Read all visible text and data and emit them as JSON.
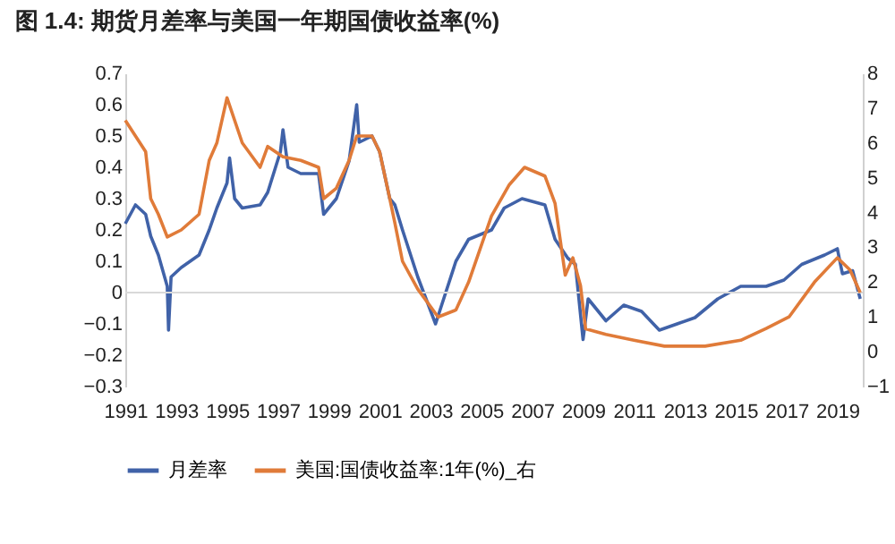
{
  "chart_data": {
    "type": "line",
    "title": "图 1.4: 期货月差率与美国一年期国债收益率(%)",
    "legend": "bottom",
    "xlim": [
      1991,
      2020
    ],
    "xticks": [
      1991,
      1993,
      1995,
      1997,
      1999,
      2001,
      2003,
      2005,
      2007,
      2009,
      2011,
      2013,
      2015,
      2017,
      2019
    ],
    "ylim": [
      -0.3,
      0.7
    ],
    "yticks": [
      -0.3,
      -0.2,
      -0.1,
      0,
      0.1,
      0.2,
      0.3,
      0.4,
      0.5,
      0.6,
      0.7
    ],
    "y2lim": [
      -1,
      8
    ],
    "y2ticks": [
      -1,
      0,
      1,
      2,
      3,
      4,
      5,
      6,
      7,
      8
    ],
    "ref_lines": [
      {
        "axis": "y",
        "value": 0,
        "color": "#d9d9d9"
      }
    ],
    "series": [
      {
        "name": "月差率",
        "color": "#4062a8",
        "x": [
          1991.0,
          1991.4,
          1991.8,
          1992.0,
          1992.3,
          1992.65,
          1992.7,
          1992.8,
          1993.2,
          1993.9,
          1994.3,
          1994.6,
          1995.0,
          1995.1,
          1995.3,
          1995.6,
          1996.3,
          1996.6,
          1997.1,
          1997.2,
          1997.4,
          1997.9,
          1998.6,
          1998.8,
          1999.3,
          1999.8,
          2000.1,
          2000.2,
          2000.7,
          2001.0,
          2001.4,
          2001.6,
          2001.9,
          2002.5,
          2003.2,
          2003.6,
          2004.0,
          2004.5,
          2005.4,
          2005.9,
          2006.6,
          2007.5,
          2007.9,
          2008.4,
          2008.7,
          2009.0,
          2009.2,
          2009.9,
          2010.6,
          2011.3,
          2012.0,
          2012.7,
          2013.4,
          2014.3,
          2015.2,
          2016.2,
          2016.9,
          2017.6,
          2018.5,
          2019.0,
          2019.2,
          2019.6,
          2019.9
        ],
        "values": [
          0.22,
          0.28,
          0.25,
          0.18,
          0.12,
          0.02,
          -0.12,
          0.05,
          0.08,
          0.12,
          0.2,
          0.27,
          0.35,
          0.43,
          0.3,
          0.27,
          0.28,
          0.32,
          0.45,
          0.52,
          0.4,
          0.38,
          0.38,
          0.25,
          0.3,
          0.42,
          0.6,
          0.48,
          0.5,
          0.45,
          0.3,
          0.28,
          0.2,
          0.05,
          -0.1,
          0.0,
          0.1,
          0.17,
          0.2,
          0.27,
          0.3,
          0.28,
          0.17,
          0.11,
          0.09,
          -0.15,
          -0.02,
          -0.09,
          -0.04,
          -0.06,
          -0.12,
          -0.1,
          -0.08,
          -0.02,
          0.02,
          0.02,
          0.04,
          0.09,
          0.12,
          0.14,
          0.06,
          0.07,
          -0.02
        ]
      },
      {
        "name": "美国:国债收益率:1年(%)_右",
        "color": "#e07b39",
        "axis": "y2",
        "x": [
          1991.0,
          1991.4,
          1991.8,
          1992.0,
          1992.3,
          1992.65,
          1993.2,
          1993.9,
          1994.3,
          1994.6,
          1995.0,
          1995.6,
          1996.3,
          1996.6,
          1997.2,
          1997.9,
          1998.6,
          1998.8,
          1999.3,
          1999.8,
          2000.1,
          2000.7,
          2001.0,
          2001.4,
          2001.6,
          2001.9,
          2002.5,
          2003.3,
          2004.0,
          2004.5,
          2005.4,
          2006.1,
          2006.7,
          2007.5,
          2007.9,
          2008.3,
          2008.6,
          2008.9,
          2009.1,
          2009.9,
          2011.0,
          2012.2,
          2013.8,
          2015.2,
          2016.2,
          2017.1,
          2018.1,
          2019.0,
          2019.5,
          2019.9
        ],
        "values": [
          6.65,
          6.2,
          5.75,
          4.4,
          3.95,
          3.3,
          3.5,
          3.95,
          5.5,
          6.0,
          7.3,
          6.0,
          5.3,
          5.9,
          5.6,
          5.5,
          5.3,
          4.4,
          4.7,
          5.5,
          6.2,
          6.2,
          5.75,
          4.4,
          3.7,
          2.6,
          1.8,
          1.0,
          1.2,
          2.0,
          3.9,
          4.8,
          5.3,
          5.05,
          4.26,
          2.2,
          2.7,
          1.9,
          0.66,
          0.5,
          0.33,
          0.16,
          0.16,
          0.33,
          0.67,
          1.0,
          2.0,
          2.7,
          2.35,
          1.7
        ]
      }
    ]
  }
}
